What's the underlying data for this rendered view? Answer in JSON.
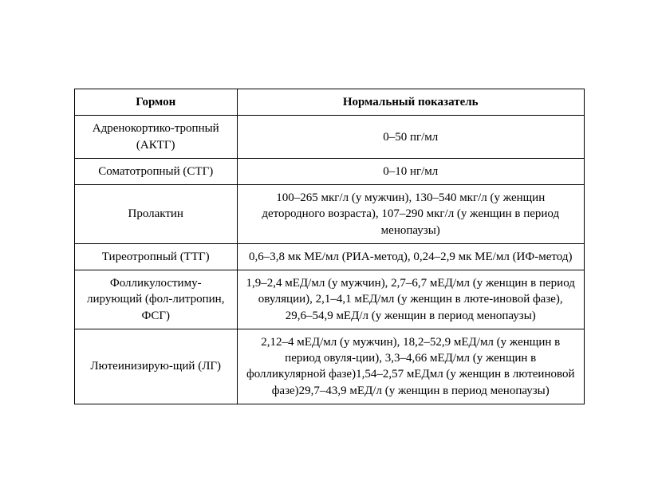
{
  "table": {
    "type": "table",
    "columns": [
      {
        "label": "Гормон",
        "width_pct": 32,
        "align": "center"
      },
      {
        "label": "Нормальный показатель",
        "width_pct": 68,
        "align": "center"
      }
    ],
    "rows": [
      {
        "hormone": "Адренокортико-тропный (АКТГ)",
        "value": "0–50 пг/мл"
      },
      {
        "hormone": "Соматотропный (СТГ)",
        "value": "0–10 нг/мл"
      },
      {
        "hormone": "Пролактин",
        "value": "100–265 мкг/л (у мужчин), 130–540 мкг/л (у женщин детородного возраста), 107–290 мкг/л (у женщин в период менопаузы)"
      },
      {
        "hormone": "Тиреотропный (ТТГ)",
        "value": "0,6–3,8 мк МЕ/мл (РИА-метод), 0,24–2,9 мк МЕ/мл (ИФ-метод)"
      },
      {
        "hormone": "Фолликулостиму-лирующий (фол-литропин, ФСГ)",
        "value": "1,9–2,4 мЕД/мл (у мужчин), 2,7–6,7 мЕД/мл (у женщин в период овуляции), 2,1–4,1 мЕД/мл (у женщин в люте-иновой фазе), 29,6–54,9 мЕД/л (у женщин в период менопаузы)"
      },
      {
        "hormone": "Лютеинизирую-щий (ЛГ)",
        "value": "2,12–4 мЕД/мл (у мужчин), 18,2–52,9 мЕД/мл (у женщин в период овуля-ции), 3,3–4,66 мЕД/мл (у женщин в фолликулярной фазе)1,54–2,57 мЕДмл (у женщин в лютеиновой фазе)29,7–43,9 мЕД/л (у женщин в период менопаузы)"
      }
    ],
    "border_color": "#000000",
    "background_color": "#ffffff",
    "font_family": "Times New Roman",
    "font_size_pt": 11,
    "header_font_weight": "bold"
  }
}
